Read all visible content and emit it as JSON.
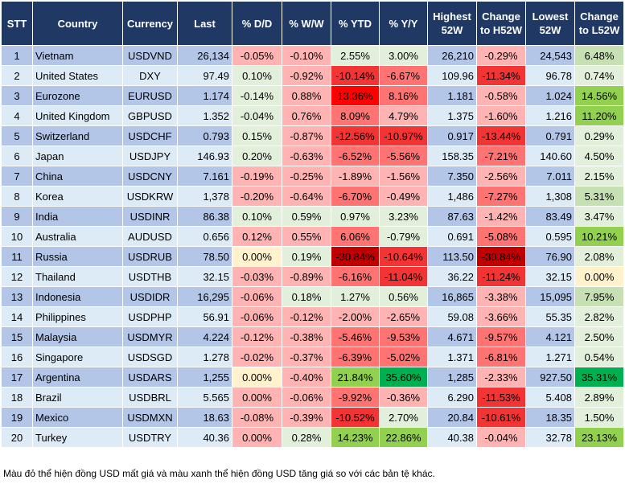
{
  "palette": {
    "g": "#e2efda",
    "G": "#c6e0b4",
    "GG": "#92d050",
    "GGG": "#00b050",
    "p": "#ffb3b3",
    "r": "#ff7373",
    "R": "#f23434",
    "RR": "#ff0000",
    "D": "#c00000",
    "y": "#fff2cc",
    "odd": "#b4c6e7",
    "even": "#ddebf7",
    "header": "#203864"
  },
  "headers": [
    "STT",
    "Country",
    "Currency",
    "Last",
    "% D/D",
    "% W/W",
    "% YTD",
    "% Y/Y",
    "Highest 52W",
    "Change to H52W",
    "Lowest 52W",
    "Change to L52W"
  ],
  "rows": [
    {
      "stt": "1",
      "country": "Vietnam",
      "currency": "USDVND",
      "last": "26,134",
      "dd": "-0.05%",
      "ww": "-0.10%",
      "ytd": "2.55%",
      "yy": "3.00%",
      "high": "26,210",
      "chh": "-0.29%",
      "low": "24,543",
      "chl": "6.48%",
      "colors": [
        "p",
        "p",
        "g",
        "g",
        "p",
        "G"
      ]
    },
    {
      "stt": "2",
      "country": "United States",
      "currency": "DXY",
      "last": "97.49",
      "dd": "0.10%",
      "ww": "-0.92%",
      "ytd": "-10.14%",
      "yy": "-6.67%",
      "high": "109.96",
      "chh": "-11.34%",
      "low": "96.78",
      "chl": "0.74%",
      "colors": [
        "g",
        "p",
        "R",
        "r",
        "R",
        "g"
      ]
    },
    {
      "stt": "3",
      "country": "Eurozone",
      "currency": "EURUSD",
      "last": "1.174",
      "dd": "-0.14%",
      "ww": "0.88%",
      "ytd": "13.36%",
      "yy": "8.16%",
      "high": "1.181",
      "chh": "-0.58%",
      "low": "1.024",
      "chl": "14.56%",
      "colors": [
        "g",
        "p",
        "RR",
        "r",
        "p",
        "GG"
      ]
    },
    {
      "stt": "4",
      "country": "United Kingdom",
      "currency": "GBPUSD",
      "last": "1.352",
      "dd": "-0.04%",
      "ww": "0.76%",
      "ytd": "8.09%",
      "yy": "4.79%",
      "high": "1.375",
      "chh": "-1.60%",
      "low": "1.216",
      "chl": "11.20%",
      "colors": [
        "g",
        "p",
        "r",
        "p",
        "p",
        "GG"
      ]
    },
    {
      "stt": "5",
      "country": "Switzerland",
      "currency": "USDCHF",
      "last": "0.793",
      "dd": "0.15%",
      "ww": "-0.87%",
      "ytd": "-12.56%",
      "yy": "-10.97%",
      "high": "0.917",
      "chh": "-13.44%",
      "low": "0.791",
      "chl": "0.29%",
      "colors": [
        "g",
        "p",
        "R",
        "R",
        "R",
        "g"
      ]
    },
    {
      "stt": "6",
      "country": "Japan",
      "currency": "USDJPY",
      "last": "146.93",
      "dd": "0.20%",
      "ww": "-0.63%",
      "ytd": "-6.52%",
      "yy": "-5.56%",
      "high": "158.35",
      "chh": "-7.21%",
      "low": "140.60",
      "chl": "4.50%",
      "colors": [
        "g",
        "p",
        "r",
        "r",
        "r",
        "g"
      ]
    },
    {
      "stt": "7",
      "country": "China",
      "currency": "USDCNY",
      "last": "7.161",
      "dd": "-0.19%",
      "ww": "-0.25%",
      "ytd": "-1.89%",
      "yy": "-1.56%",
      "high": "7.350",
      "chh": "-2.56%",
      "low": "7.011",
      "chl": "2.15%",
      "colors": [
        "p",
        "p",
        "p",
        "p",
        "p",
        "g"
      ]
    },
    {
      "stt": "8",
      "country": "Korea",
      "currency": "USDKRW",
      "last": "1,378",
      "dd": "-0.20%",
      "ww": "-0.64%",
      "ytd": "-6.70%",
      "yy": "-0.49%",
      "high": "1,486",
      "chh": "-7.27%",
      "low": "1,308",
      "chl": "5.31%",
      "colors": [
        "p",
        "p",
        "r",
        "p",
        "r",
        "G"
      ]
    },
    {
      "stt": "9",
      "country": "India",
      "currency": "USDINR",
      "last": "86.38",
      "dd": "0.10%",
      "ww": "0.59%",
      "ytd": "0.97%",
      "yy": "3.23%",
      "high": "87.63",
      "chh": "-1.42%",
      "low": "83.49",
      "chl": "3.47%",
      "colors": [
        "g",
        "g",
        "g",
        "g",
        "p",
        "g"
      ]
    },
    {
      "stt": "10",
      "country": "Australia",
      "currency": "AUDUSD",
      "last": "0.656",
      "dd": "0.12%",
      "ww": "0.55%",
      "ytd": "6.06%",
      "yy": "-0.79%",
      "high": "0.691",
      "chh": "-5.08%",
      "low": "0.595",
      "chl": "10.21%",
      "colors": [
        "p",
        "p",
        "r",
        "g",
        "r",
        "GG"
      ]
    },
    {
      "stt": "11",
      "country": "Russia",
      "currency": "USDRUB",
      "last": "78.50",
      "dd": "0.00%",
      "ww": "0.19%",
      "ytd": "-30.84%",
      "yy": "-10.64%",
      "high": "113.50",
      "chh": "-30.84%",
      "low": "76.90",
      "chl": "2.08%",
      "colors": [
        "y",
        "g",
        "D",
        "R",
        "D",
        "g"
      ]
    },
    {
      "stt": "12",
      "country": "Thailand",
      "currency": "USDTHB",
      "last": "32.15",
      "dd": "-0.03%",
      "ww": "-0.89%",
      "ytd": "-6.16%",
      "yy": "-11.04%",
      "high": "36.22",
      "chh": "-11.24%",
      "low": "32.15",
      "chl": "0.00%",
      "colors": [
        "p",
        "p",
        "r",
        "R",
        "R",
        "y"
      ]
    },
    {
      "stt": "13",
      "country": "Indonesia",
      "currency": "USDIDR",
      "last": "16,295",
      "dd": "-0.06%",
      "ww": "0.18%",
      "ytd": "1.27%",
      "yy": "0.56%",
      "high": "16,865",
      "chh": "-3.38%",
      "low": "15,095",
      "chl": "7.95%",
      "colors": [
        "p",
        "g",
        "g",
        "g",
        "p",
        "G"
      ]
    },
    {
      "stt": "14",
      "country": "Philippines",
      "currency": "USDPHP",
      "last": "56.91",
      "dd": "-0.06%",
      "ww": "-0.12%",
      "ytd": "-2.00%",
      "yy": "-2.65%",
      "high": "59.08",
      "chh": "-3.66%",
      "low": "55.35",
      "chl": "2.82%",
      "colors": [
        "p",
        "p",
        "p",
        "p",
        "p",
        "g"
      ]
    },
    {
      "stt": "15",
      "country": "Malaysia",
      "currency": "USDMYR",
      "last": "4.224",
      "dd": "-0.12%",
      "ww": "-0.38%",
      "ytd": "-5.46%",
      "yy": "-9.53%",
      "high": "4.671",
      "chh": "-9.57%",
      "low": "4.121",
      "chl": "2.50%",
      "colors": [
        "p",
        "p",
        "r",
        "r",
        "r",
        "g"
      ]
    },
    {
      "stt": "16",
      "country": "Singapore",
      "currency": "USDSGD",
      "last": "1.278",
      "dd": "-0.02%",
      "ww": "-0.37%",
      "ytd": "-6.39%",
      "yy": "-5.02%",
      "high": "1.371",
      "chh": "-6.81%",
      "low": "1.271",
      "chl": "0.54%",
      "colors": [
        "p",
        "p",
        "r",
        "r",
        "r",
        "g"
      ]
    },
    {
      "stt": "17",
      "country": "Argentina",
      "currency": "USDARS",
      "last": "1,255",
      "dd": "0.00%",
      "ww": "-0.40%",
      "ytd": "21.84%",
      "yy": "35.60%",
      "high": "1,285",
      "chh": "-2.33%",
      "low": "927.50",
      "chl": "35.31%",
      "colors": [
        "y",
        "p",
        "GG",
        "GGG",
        "p",
        "GGG"
      ]
    },
    {
      "stt": "18",
      "country": "Brazil",
      "currency": "USDBRL",
      "last": "5.565",
      "dd": "0.00%",
      "ww": "-0.06%",
      "ytd": "-9.92%",
      "yy": "-0.36%",
      "high": "6.290",
      "chh": "-11.53%",
      "low": "5.408",
      "chl": "2.89%",
      "colors": [
        "p",
        "p",
        "r",
        "p",
        "R",
        "g"
      ]
    },
    {
      "stt": "19",
      "country": "Mexico",
      "currency": "USDMXN",
      "last": "18.63",
      "dd": "-0.08%",
      "ww": "-0.39%",
      "ytd": "-10.52%",
      "yy": "2.70%",
      "high": "20.84",
      "chh": "-10.61%",
      "low": "18.35",
      "chl": "1.50%",
      "colors": [
        "p",
        "p",
        "R",
        "g",
        "R",
        "g"
      ]
    },
    {
      "stt": "20",
      "country": "Turkey",
      "currency": "USDTRY",
      "last": "40.36",
      "dd": "0.00%",
      "ww": "0.28%",
      "ytd": "14.23%",
      "yy": "22.86%",
      "high": "40.38",
      "chh": "-0.04%",
      "low": "32.78",
      "chl": "23.13%",
      "colors": [
        "p",
        "g",
        "GG",
        "GG",
        "p",
        "GG"
      ]
    }
  ],
  "footnote": "Màu đỏ thể hiện đồng USD mất giá và màu xanh thể hiện đồng USD tăng giá so với các bản tệ khác."
}
